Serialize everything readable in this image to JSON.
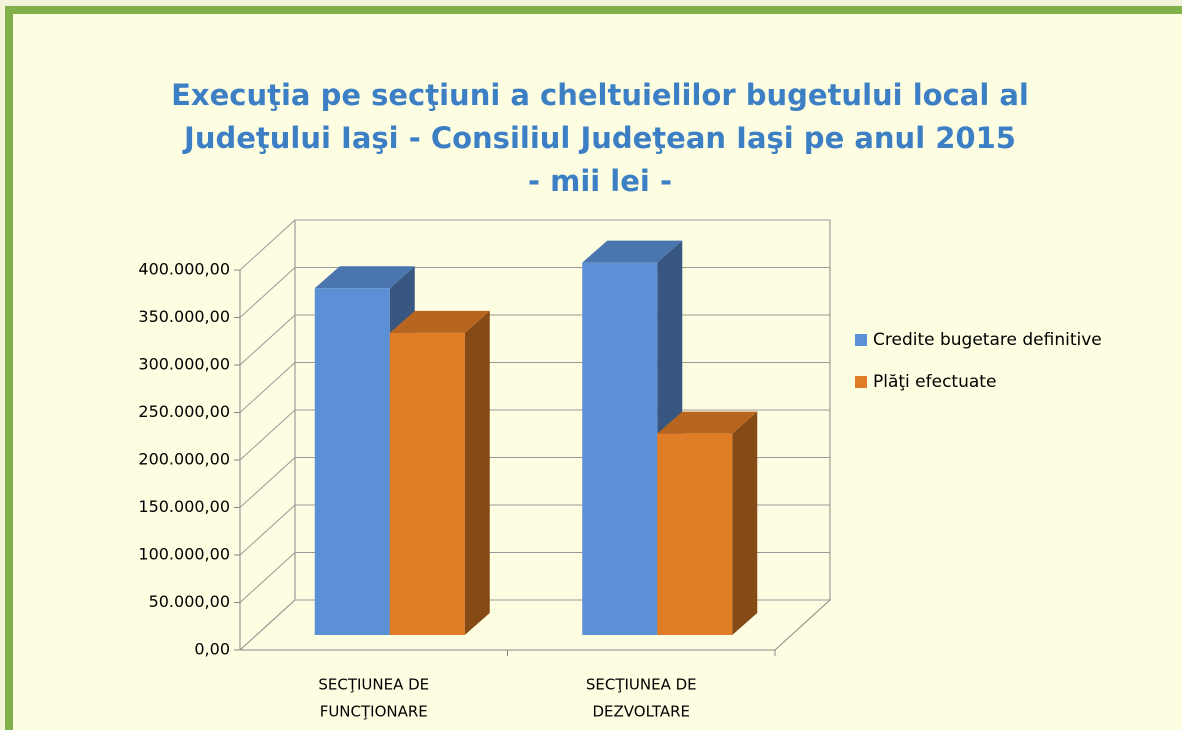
{
  "chart_data": {
    "type": "bar3d",
    "title": [
      "Execuţia pe secţiuni a  cheltuielilor bugetului local al",
      "Judeţului Iaşi - Consiliul Judeţean Iaşi pe anul 2015",
      "- mii lei -"
    ],
    "categories": [
      [
        "SECŢIUNEA DE",
        "FUNCŢIONARE"
      ],
      [
        "SECŢIUNEA DE",
        "DEZVOLTARE"
      ]
    ],
    "series": [
      {
        "name": "Credite bugetare definitive",
        "color": "#5b8fd6",
        "values": [
          365000,
          392000
        ]
      },
      {
        "name": "Plăţi efectuate",
        "color": "#e07b26",
        "values": [
          318000,
          212000
        ]
      }
    ],
    "ylim": [
      0,
      400000
    ],
    "yticks": [
      {
        "value": 0,
        "label": "0,00"
      },
      {
        "value": 50000,
        "label": "50.000,00"
      },
      {
        "value": 100000,
        "label": "100.000,00"
      },
      {
        "value": 150000,
        "label": "150.000,00"
      },
      {
        "value": 200000,
        "label": "200.000,00"
      },
      {
        "value": 250000,
        "label": "250.000,00"
      },
      {
        "value": 300000,
        "label": "300.000,00"
      },
      {
        "value": 350000,
        "label": "350.000,00"
      },
      {
        "value": 400000,
        "label": "400.000,00"
      }
    ],
    "grid": true,
    "legend": "right"
  }
}
